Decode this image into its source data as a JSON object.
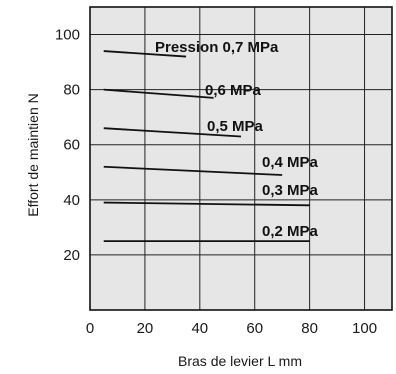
{
  "chart_data": {
    "type": "line",
    "title": "",
    "xlabel": "Bras de levier  L mm",
    "ylabel": "Effort de maintien  N",
    "xlim": [
      0,
      110
    ],
    "ylim": [
      0,
      110
    ],
    "x_ticks": [
      "0",
      "20",
      "40",
      "60",
      "80",
      "100"
    ],
    "y_ticks": [
      "20",
      "40",
      "60",
      "80",
      "100"
    ],
    "grid": true,
    "plot_background": "#e6e6e6",
    "line_color": "#111111",
    "series": [
      {
        "name": "Pression 0,7 MPa",
        "x": [
          5,
          35
        ],
        "y": [
          94,
          92
        ]
      },
      {
        "name": "0,6 MPa",
        "x": [
          5,
          45
        ],
        "y": [
          80,
          77
        ]
      },
      {
        "name": "0,5 MPa",
        "x": [
          5,
          55
        ],
        "y": [
          66,
          63
        ]
      },
      {
        "name": "0,4 MPa",
        "x": [
          5,
          70
        ],
        "y": [
          52,
          49
        ]
      },
      {
        "name": "0,3 MPa",
        "x": [
          5,
          80
        ],
        "y": [
          39,
          38
        ]
      },
      {
        "name": "0,2 MPa",
        "x": [
          5,
          80
        ],
        "y": [
          25,
          25
        ]
      }
    ]
  }
}
